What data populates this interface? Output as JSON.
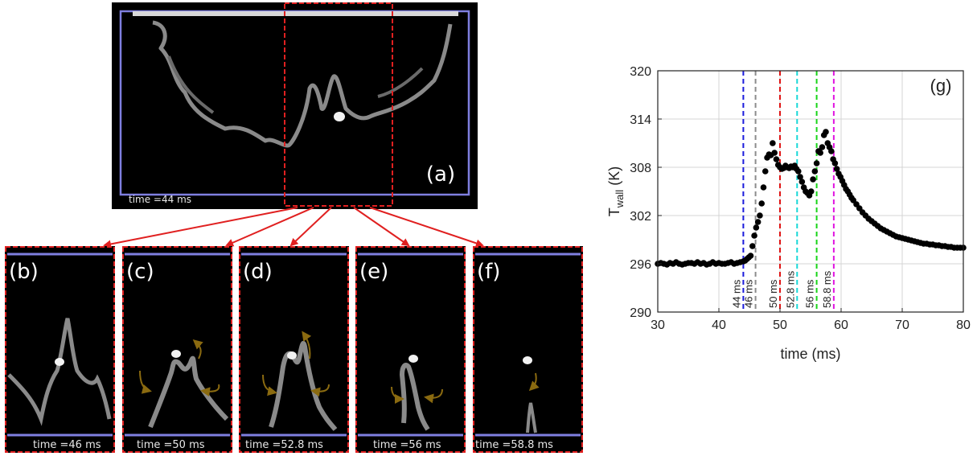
{
  "panels": {
    "a": {
      "letter": "(a)",
      "time": "time =44 ms"
    },
    "b": {
      "letter": "(b)",
      "time": "time =46 ms"
    },
    "c": {
      "letter": "(c)",
      "time": "time =50 ms"
    },
    "d": {
      "letter": "(d)",
      "time": "time =52.8 ms"
    },
    "e": {
      "letter": "(e)",
      "time": "time =56 ms"
    },
    "f": {
      "letter": "(f)",
      "time": "time =58.8 ms"
    }
  },
  "colors": {
    "sim_background": "#000000",
    "flame_gray": "#8a8a8a",
    "droplet": "#f2f2f2",
    "domain_frame": "#7f7fe0",
    "zoom_box": "#e02020",
    "flow_arrow": "#8a6a10",
    "data_marker": "#000000"
  },
  "chart_data": {
    "type": "scatter",
    "panel_label": "(g)",
    "xlabel": "time (ms)",
    "ylabel_main": "T",
    "ylabel_sub": "wall",
    "ylabel_unit": " (K)",
    "xlim": [
      30,
      80
    ],
    "ylim": [
      290,
      320
    ],
    "xticks": [
      "30",
      "40",
      "50",
      "60",
      "70",
      "80"
    ],
    "yticks": [
      "290",
      "296",
      "302",
      "308",
      "314",
      "320"
    ],
    "grid": true,
    "markers": [
      {
        "label": "44 ms",
        "x": 44,
        "color": "#1a1adc"
      },
      {
        "label": "46 ms",
        "x": 46,
        "color": "#8c8c8c"
      },
      {
        "label": "50 ms",
        "x": 50,
        "color": "#e01414"
      },
      {
        "label": "52.8 ms",
        "x": 52.8,
        "color": "#18d8d8"
      },
      {
        "label": "56 ms",
        "x": 56,
        "color": "#18d418"
      },
      {
        "label": "58.8 ms",
        "x": 58.8,
        "color": "#e014e0"
      }
    ],
    "series": [
      {
        "x": [
          30,
          30.5,
          31,
          31.5,
          32,
          32.5,
          33,
          33.5,
          34,
          34.5,
          35,
          35.5,
          36,
          36.5,
          37,
          37.5,
          38,
          38.5,
          39,
          39.5,
          40,
          40.5,
          41,
          41.5,
          42,
          42.5,
          43,
          43.5,
          44,
          44.3,
          44.6,
          44.9,
          45.2,
          45.5,
          45.8,
          46.1,
          46.4,
          46.7,
          47,
          47.3,
          47.6,
          47.9,
          48.2,
          48.5,
          48.8,
          49.1,
          49.4,
          49.7,
          50,
          50.3,
          50.6,
          50.9,
          51.2,
          51.5,
          51.8,
          52.1,
          52.4,
          52.7,
          53,
          53.3,
          53.6,
          53.9,
          54.2,
          54.5,
          54.8,
          55.1,
          55.4,
          55.7,
          56,
          56.3,
          56.6,
          56.9,
          57.2,
          57.5,
          57.8,
          58.1,
          58.4,
          58.7,
          59,
          59.3,
          59.6,
          59.9,
          60.2,
          60.5,
          60.8,
          61.1,
          61.4,
          61.7,
          62,
          62.5,
          63,
          63.5,
          64,
          64.5,
          65,
          65.5,
          66,
          66.5,
          67,
          67.5,
          68,
          68.5,
          69,
          69.5,
          70,
          70.5,
          71,
          71.5,
          72,
          72.5,
          73,
          73.5,
          74,
          74.5,
          75,
          75.5,
          76,
          76.5,
          77,
          77.5,
          78,
          78.5,
          79,
          79.5,
          80
        ],
        "y": [
          296,
          296.1,
          296,
          295.9,
          296.1,
          296,
          296.2,
          296,
          295.9,
          296,
          296.1,
          296.1,
          296,
          296.2,
          296,
          296.1,
          295.9,
          296,
          296.2,
          296,
          296.1,
          296,
          296,
          296.1,
          296.2,
          296,
          296.1,
          296.2,
          296.3,
          296.4,
          296.6,
          296.8,
          297,
          298.2,
          299.5,
          300.5,
          301.2,
          302,
          303.5,
          305.5,
          307.5,
          309.2,
          309.6,
          309.5,
          311,
          309.8,
          309,
          308.3,
          308,
          307.8,
          307.9,
          308.2,
          308,
          307.9,
          308.1,
          308,
          308.2,
          307.8,
          307.5,
          306.8,
          306.2,
          305.5,
          305,
          304.8,
          304.5,
          305,
          306.5,
          307.5,
          308.5,
          310,
          309.8,
          310.5,
          312,
          312.4,
          311,
          310.5,
          310,
          309,
          308.5,
          307.8,
          307.2,
          306.8,
          306.3,
          305.8,
          305.3,
          305,
          304.6,
          304.2,
          303.9,
          303.4,
          302.9,
          302.4,
          302,
          301.6,
          301.3,
          301,
          300.7,
          300.4,
          300.2,
          300,
          299.8,
          299.6,
          299.4,
          299.3,
          299.2,
          299.1,
          299,
          298.9,
          298.8,
          298.7,
          298.6,
          298.5,
          298.5,
          298.4,
          298.4,
          298.3,
          298.3,
          298.2,
          298.2,
          298.1,
          298.1,
          298,
          298,
          298,
          298
        ]
      }
    ]
  }
}
